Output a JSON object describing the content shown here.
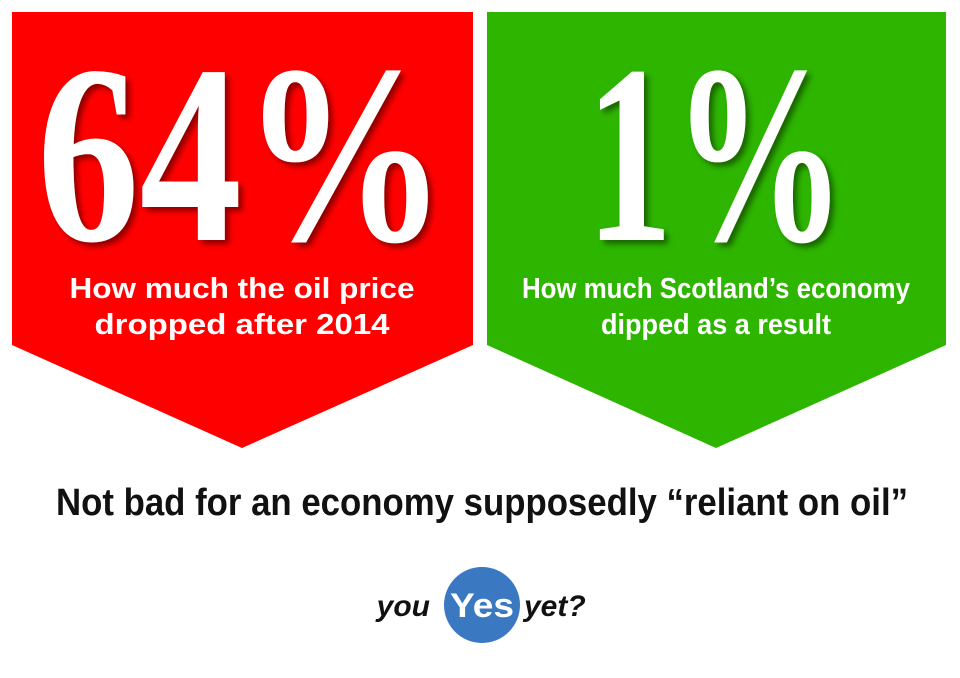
{
  "panels": [
    {
      "stat": "64%",
      "caption": [
        "How much the oil price",
        "dropped after 2014"
      ]
    },
    {
      "stat": "1%",
      "caption": [
        "How much Scotland’s economy",
        "dipped as a result"
      ]
    }
  ],
  "tagline": "Not bad for an economy supposedly “reliant on oil”",
  "logo": {
    "before": "you",
    "word": "Yes",
    "after": "yet?"
  }
}
